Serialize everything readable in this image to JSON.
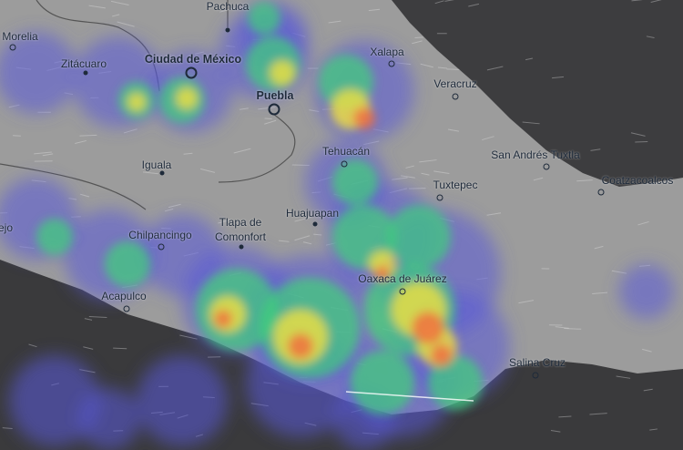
{
  "map": {
    "colors": {
      "land": "#9c9c9c",
      "sea": "#3a3a3c",
      "heat_low": "#5a5ad8",
      "heat_mid": "#3fd07a",
      "heat_high": "#f2e040",
      "heat_peak": "#f06a40"
    },
    "cities": [
      {
        "name": "Pachuca"
      },
      {
        "name": "Morelia"
      },
      {
        "name": "Zitácuaro"
      },
      {
        "name": "Ciudad de México"
      },
      {
        "name": "Puebla"
      },
      {
        "name": "Xalapa"
      },
      {
        "name": "Veracruz"
      },
      {
        "name": "Tehuacán"
      },
      {
        "name": "San Andrés Tuxtla"
      },
      {
        "name": "Coatzacoalcos"
      },
      {
        "name": "Iguala"
      },
      {
        "name": "Tuxtepec"
      },
      {
        "name": "Huajuapan"
      },
      {
        "name": "Tlapa de"
      },
      {
        "name": "Comonfort"
      },
      {
        "name": "Chilpancingo"
      },
      {
        "name": "Acapulco"
      },
      {
        "name": "Oaxaca de Juárez"
      },
      {
        "name": "Salina Cruz"
      },
      {
        "name": "ejo"
      }
    ]
  }
}
